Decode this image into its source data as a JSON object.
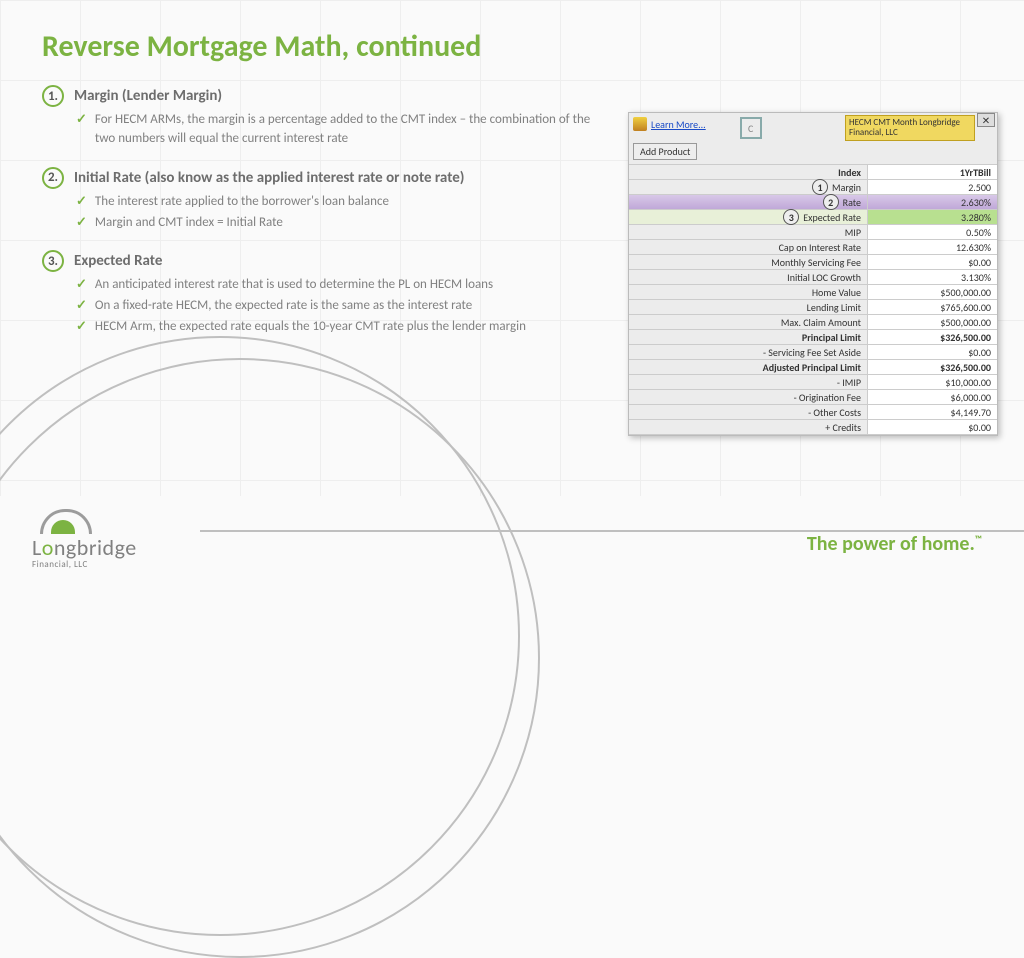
{
  "title": "Reverse Mortgage Math, continued",
  "sections": [
    {
      "num": "1.",
      "title": "Margin (Lender Margin)",
      "bullets": [
        "For HECM ARMs, the margin is a percentage added to the CMT index – the combination of the two numbers will equal the current interest rate"
      ]
    },
    {
      "num": "2.",
      "title": "Initial Rate (also know as the applied interest rate or note rate)",
      "bullets": [
        "The interest rate applied to the borrower's loan balance",
        "Margin and CMT index = Initial Rate"
      ]
    },
    {
      "num": "3.",
      "title": "Expected Rate",
      "bullets": [
        "An anticipated interest rate that is used to determine the PL on HECM loans",
        "On a fixed-rate HECM, the expected rate is the same as the interest rate",
        "HECM Arm, the expected rate equals the 10-year CMT rate plus the lender margin"
      ]
    }
  ],
  "panel": {
    "learn": "Learn More...",
    "add_product": "Add Product",
    "refresh": "C",
    "product_label": "HECM CMT Month Longbridge Financial, LLC",
    "index_row": {
      "label": "Index",
      "value": "1YrTBill"
    },
    "rows": [
      {
        "callout": "1",
        "label": "Margin",
        "value": "2.500",
        "cls": "editable"
      },
      {
        "callout": "2",
        "label": "Rate",
        "value": "2.630%",
        "cls": "hl-purple"
      },
      {
        "callout": "3",
        "label": "Expected Rate",
        "value": "3.280%",
        "cls": "hl-green"
      },
      {
        "label": "MIP",
        "value": "0.50%"
      },
      {
        "label": "Cap on Interest Rate",
        "value": "12.630%"
      },
      {
        "label": "Monthly Servicing Fee",
        "value": "$0.00",
        "cls": "editable"
      },
      {
        "label": "Initial LOC Growth",
        "value": "3.130%"
      },
      {
        "label": "Home Value",
        "value": "$500,000.00"
      },
      {
        "label": "Lending Limit",
        "value": "$765,600.00"
      },
      {
        "label": "Max. Claim Amount",
        "value": "$500,000.00"
      },
      {
        "label": "Principal Limit",
        "value": "$326,500.00",
        "cls": "bold"
      },
      {
        "label": "- Servicing Fee Set Aside",
        "value": "$0.00"
      },
      {
        "label": "Adjusted Principal Limit",
        "value": "$326,500.00",
        "cls": "bold"
      },
      {
        "label": "- IMIP",
        "value": "$10,000.00"
      },
      {
        "label": "- Origination Fee",
        "value": "$6,000.00"
      },
      {
        "label": "- Other Costs",
        "value": "$4,149.70"
      },
      {
        "label": "+ Credits",
        "value": "$0.00"
      }
    ]
  },
  "footer": {
    "logo_text_1": "L",
    "logo_text_2": "o",
    "logo_text_3": "ngbridge",
    "logo_sub": "Financial, LLC",
    "tagline": "The power of home.",
    "tm": "™"
  },
  "colors": {
    "accent": "#7cb342",
    "text_muted": "#808080"
  }
}
